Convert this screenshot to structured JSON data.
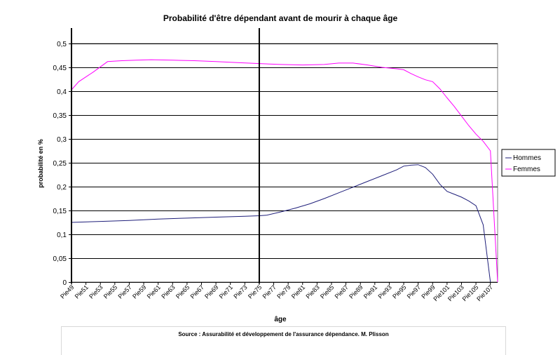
{
  "chart_data": {
    "type": "line",
    "title": "Probabilité d'être dépendant avant de mourir à chaque âge",
    "xlabel": "âge",
    "ylabel": "probabilité en %",
    "ylim": [
      0,
      0.5
    ],
    "yticks": [
      "0",
      "0,05",
      "0,1",
      "0,15",
      "0,2",
      "0,25",
      "0,3",
      "0,35",
      "0,4",
      "0,45",
      "0,5"
    ],
    "x_tick_labels": [
      "Pie49",
      "Pie51",
      "Pie53",
      "Pie55",
      "Pie57",
      "Pie59",
      "Pie61",
      "Pie63",
      "Pie65",
      "Pie67",
      "Pie69",
      "Pie71",
      "Pie73",
      "Pie75",
      "Pie77",
      "Pie79",
      "Pie81",
      "Pie83",
      "Pie85",
      "Pie87",
      "Pie89",
      "Pie91",
      "Pie93",
      "Pie95",
      "Pie97",
      "Pie99",
      "Pie101",
      "Pie103",
      "Pie105",
      "Pie107"
    ],
    "x_ages": [
      49,
      108
    ],
    "markers_at_age": [
      49,
      75
    ],
    "grid": "horizontal",
    "legend": "right",
    "series": [
      {
        "name": "Hommes",
        "color": "#1f1f7a",
        "points": [
          [
            49,
            0.125
          ],
          [
            53,
            0.127
          ],
          [
            57,
            0.129
          ],
          [
            61,
            0.132
          ],
          [
            65,
            0.134
          ],
          [
            69,
            0.136
          ],
          [
            73,
            0.138
          ],
          [
            75,
            0.139
          ],
          [
            76,
            0.14
          ],
          [
            78,
            0.147
          ],
          [
            80,
            0.155
          ],
          [
            82,
            0.164
          ],
          [
            84,
            0.175
          ],
          [
            86,
            0.187
          ],
          [
            88,
            0.199
          ],
          [
            90,
            0.211
          ],
          [
            92,
            0.223
          ],
          [
            94,
            0.235
          ],
          [
            95,
            0.243
          ],
          [
            96,
            0.245
          ],
          [
            97,
            0.246
          ],
          [
            98,
            0.24
          ],
          [
            99,
            0.226
          ],
          [
            100,
            0.205
          ],
          [
            101,
            0.19
          ],
          [
            102,
            0.184
          ],
          [
            103,
            0.178
          ],
          [
            104,
            0.17
          ],
          [
            105,
            0.16
          ],
          [
            106,
            0.12
          ],
          [
            107,
            0.0
          ]
        ]
      },
      {
        "name": "Femmes",
        "color": "#ff00ff",
        "points": [
          [
            49,
            0.403
          ],
          [
            50,
            0.42
          ],
          [
            52,
            0.44
          ],
          [
            54,
            0.462
          ],
          [
            56,
            0.464
          ],
          [
            58,
            0.465
          ],
          [
            60,
            0.466
          ],
          [
            63,
            0.465
          ],
          [
            66,
            0.464
          ],
          [
            69,
            0.462
          ],
          [
            72,
            0.46
          ],
          [
            75,
            0.458
          ],
          [
            78,
            0.456
          ],
          [
            81,
            0.455
          ],
          [
            84,
            0.456
          ],
          [
            86,
            0.459
          ],
          [
            88,
            0.459
          ],
          [
            90,
            0.455
          ],
          [
            92,
            0.45
          ],
          [
            94,
            0.447
          ],
          [
            95,
            0.445
          ],
          [
            96,
            0.437
          ],
          [
            97,
            0.43
          ],
          [
            98,
            0.424
          ],
          [
            99,
            0.42
          ],
          [
            100,
            0.405
          ],
          [
            101,
            0.386
          ],
          [
            102,
            0.368
          ],
          [
            103,
            0.348
          ],
          [
            104,
            0.328
          ],
          [
            105,
            0.31
          ],
          [
            106,
            0.295
          ],
          [
            107,
            0.275
          ],
          [
            108,
            0.0
          ]
        ]
      }
    ]
  },
  "source": "Source : Assurabilité et développement de l'assurance dépendance. M. Plisson"
}
